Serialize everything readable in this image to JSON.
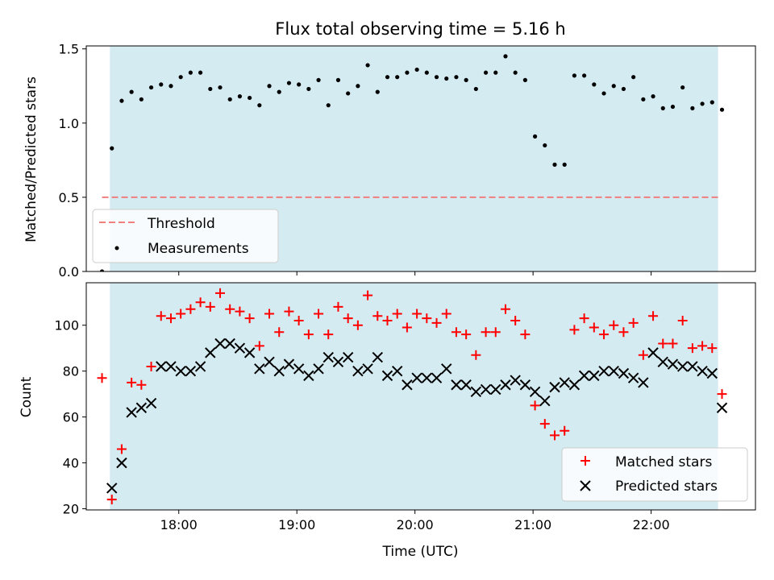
{
  "chart_data": {
    "title": "Flux total observing time = 5.16 h",
    "xlabel": "Time (UTC)",
    "x_ticks": [
      "18:00",
      "19:00",
      "20:00",
      "21:00",
      "22:00"
    ],
    "x_range": [
      "17:13",
      "22:53"
    ],
    "shaded_span": [
      "17:25",
      "22:34"
    ],
    "colors": {
      "shade": "#add8e6",
      "threshold": "#f07f7f",
      "matched": "#ff0000",
      "predicted": "#000000",
      "measurements": "#000000"
    },
    "panels": [
      {
        "type": "scatter",
        "ylabel": "Matched/Predicted stars",
        "ylim": [
          0,
          1.52
        ],
        "y_ticks": [
          "0.0",
          "0.5",
          "1.0",
          "1.5"
        ],
        "threshold": {
          "name": "Threshold",
          "value": 0.5,
          "from": "17:21",
          "to": "22:34"
        },
        "series": [
          {
            "name": "Measurements",
            "marker": "dot",
            "points": [
              [
                "17:21",
                0.0
              ],
              [
                "17:26",
                0.83
              ],
              [
                "17:31",
                1.15
              ],
              [
                "17:36",
                1.21
              ],
              [
                "17:41",
                1.16
              ],
              [
                "17:46",
                1.24
              ],
              [
                "17:51",
                1.26
              ],
              [
                "17:56",
                1.25
              ],
              [
                "18:01",
                1.31
              ],
              [
                "18:06",
                1.34
              ],
              [
                "18:11",
                1.34
              ],
              [
                "18:16",
                1.23
              ],
              [
                "18:21",
                1.24
              ],
              [
                "18:26",
                1.16
              ],
              [
                "18:31",
                1.18
              ],
              [
                "18:36",
                1.17
              ],
              [
                "18:41",
                1.12
              ],
              [
                "18:46",
                1.25
              ],
              [
                "18:51",
                1.21
              ],
              [
                "18:56",
                1.27
              ],
              [
                "19:01",
                1.26
              ],
              [
                "19:06",
                1.23
              ],
              [
                "19:11",
                1.29
              ],
              [
                "19:16",
                1.12
              ],
              [
                "19:21",
                1.29
              ],
              [
                "19:26",
                1.2
              ],
              [
                "19:31",
                1.25
              ],
              [
                "19:36",
                1.39
              ],
              [
                "19:41",
                1.21
              ],
              [
                "19:46",
                1.31
              ],
              [
                "19:51",
                1.31
              ],
              [
                "19:56",
                1.34
              ],
              [
                "20:01",
                1.36
              ],
              [
                "20:06",
                1.34
              ],
              [
                "20:11",
                1.31
              ],
              [
                "20:16",
                1.3
              ],
              [
                "20:21",
                1.31
              ],
              [
                "20:26",
                1.29
              ],
              [
                "20:31",
                1.23
              ],
              [
                "20:36",
                1.34
              ],
              [
                "20:41",
                1.34
              ],
              [
                "20:46",
                1.45
              ],
              [
                "20:51",
                1.34
              ],
              [
                "20:56",
                1.29
              ],
              [
                "21:01",
                0.91
              ],
              [
                "21:06",
                0.85
              ],
              [
                "21:11",
                0.72
              ],
              [
                "21:16",
                0.72
              ],
              [
                "21:21",
                1.32
              ],
              [
                "21:26",
                1.32
              ],
              [
                "21:31",
                1.26
              ],
              [
                "21:36",
                1.2
              ],
              [
                "21:41",
                1.25
              ],
              [
                "21:46",
                1.23
              ],
              [
                "21:51",
                1.31
              ],
              [
                "21:56",
                1.16
              ],
              [
                "22:01",
                1.18
              ],
              [
                "22:06",
                1.1
              ],
              [
                "22:11",
                1.11
              ],
              [
                "22:16",
                1.24
              ],
              [
                "22:21",
                1.1
              ],
              [
                "22:26",
                1.13
              ],
              [
                "22:31",
                1.14
              ],
              [
                "22:36",
                1.09
              ]
            ]
          }
        ],
        "legend": {
          "location": "lower-left",
          "entries": [
            "Threshold",
            "Measurements"
          ]
        }
      },
      {
        "type": "scatter",
        "ylabel": "Count",
        "ylim": [
          19.5,
          118.5
        ],
        "y_ticks": [
          "20",
          "40",
          "60",
          "80",
          "100"
        ],
        "series": [
          {
            "name": "Matched stars",
            "marker": "plus",
            "points": [
              [
                "17:21",
                77
              ],
              [
                "17:26",
                24
              ],
              [
                "17:31",
                46
              ],
              [
                "17:36",
                75
              ],
              [
                "17:41",
                74
              ],
              [
                "17:46",
                82
              ],
              [
                "17:51",
                104
              ],
              [
                "17:56",
                103
              ],
              [
                "18:01",
                105
              ],
              [
                "18:06",
                107
              ],
              [
                "18:11",
                110
              ],
              [
                "18:16",
                108
              ],
              [
                "18:21",
                114
              ],
              [
                "18:26",
                107
              ],
              [
                "18:31",
                106
              ],
              [
                "18:36",
                103
              ],
              [
                "18:41",
                91
              ],
              [
                "18:46",
                105
              ],
              [
                "18:51",
                97
              ],
              [
                "18:56",
                106
              ],
              [
                "19:01",
                102
              ],
              [
                "19:06",
                96
              ],
              [
                "19:11",
                105
              ],
              [
                "19:16",
                96
              ],
              [
                "19:21",
                108
              ],
              [
                "19:26",
                103
              ],
              [
                "19:31",
                100
              ],
              [
                "19:36",
                113
              ],
              [
                "19:41",
                104
              ],
              [
                "19:46",
                102
              ],
              [
                "19:51",
                105
              ],
              [
                "19:56",
                99
              ],
              [
                "20:01",
                105
              ],
              [
                "20:06",
                103
              ],
              [
                "20:11",
                101
              ],
              [
                "20:16",
                105
              ],
              [
                "20:21",
                97
              ],
              [
                "20:26",
                96
              ],
              [
                "20:31",
                87
              ],
              [
                "20:36",
                97
              ],
              [
                "20:41",
                97
              ],
              [
                "20:46",
                107
              ],
              [
                "20:51",
                102
              ],
              [
                "20:56",
                96
              ],
              [
                "21:01",
                65
              ],
              [
                "21:06",
                57
              ],
              [
                "21:11",
                52
              ],
              [
                "21:16",
                54
              ],
              [
                "21:21",
                98
              ],
              [
                "21:26",
                103
              ],
              [
                "21:31",
                99
              ],
              [
                "21:36",
                96
              ],
              [
                "21:41",
                100
              ],
              [
                "21:46",
                97
              ],
              [
                "21:51",
                101
              ],
              [
                "21:56",
                87
              ],
              [
                "22:01",
                104
              ],
              [
                "22:06",
                92
              ],
              [
                "22:11",
                92
              ],
              [
                "22:16",
                102
              ],
              [
                "22:21",
                90
              ],
              [
                "22:26",
                91
              ],
              [
                "22:31",
                90
              ],
              [
                "22:36",
                70
              ]
            ]
          },
          {
            "name": "Predicted stars",
            "marker": "x",
            "points": [
              [
                "17:26",
                29
              ],
              [
                "17:31",
                40
              ],
              [
                "17:36",
                62
              ],
              [
                "17:41",
                64
              ],
              [
                "17:46",
                66
              ],
              [
                "17:51",
                82
              ],
              [
                "17:56",
                82
              ],
              [
                "18:01",
                80
              ],
              [
                "18:06",
                80
              ],
              [
                "18:11",
                82
              ],
              [
                "18:16",
                88
              ],
              [
                "18:21",
                92
              ],
              [
                "18:26",
                92
              ],
              [
                "18:31",
                90
              ],
              [
                "18:36",
                88
              ],
              [
                "18:41",
                81
              ],
              [
                "18:46",
                84
              ],
              [
                "18:51",
                80
              ],
              [
                "18:56",
                83
              ],
              [
                "19:01",
                81
              ],
              [
                "19:06",
                78
              ],
              [
                "19:11",
                81
              ],
              [
                "19:16",
                86
              ],
              [
                "19:21",
                84
              ],
              [
                "19:26",
                86
              ],
              [
                "19:31",
                80
              ],
              [
                "19:36",
                81
              ],
              [
                "19:41",
                86
              ],
              [
                "19:46",
                78
              ],
              [
                "19:51",
                80
              ],
              [
                "19:56",
                74
              ],
              [
                "20:01",
                77
              ],
              [
                "20:06",
                77
              ],
              [
                "20:11",
                77
              ],
              [
                "20:16",
                81
              ],
              [
                "20:21",
                74
              ],
              [
                "20:26",
                74
              ],
              [
                "20:31",
                71
              ],
              [
                "20:36",
                72
              ],
              [
                "20:41",
                72
              ],
              [
                "20:46",
                74
              ],
              [
                "20:51",
                76
              ],
              [
                "20:56",
                74
              ],
              [
                "21:01",
                71
              ],
              [
                "21:06",
                67
              ],
              [
                "21:11",
                73
              ],
              [
                "21:16",
                75
              ],
              [
                "21:21",
                74
              ],
              [
                "21:26",
                78
              ],
              [
                "21:31",
                78
              ],
              [
                "21:36",
                80
              ],
              [
                "21:41",
                80
              ],
              [
                "21:46",
                79
              ],
              [
                "21:51",
                77
              ],
              [
                "21:56",
                75
              ],
              [
                "22:01",
                88
              ],
              [
                "22:06",
                84
              ],
              [
                "22:11",
                83
              ],
              [
                "22:16",
                82
              ],
              [
                "22:21",
                82
              ],
              [
                "22:26",
                80
              ],
              [
                "22:31",
                79
              ],
              [
                "22:36",
                64
              ]
            ]
          }
        ],
        "legend": {
          "location": "lower-right",
          "entries": [
            "Matched stars",
            "Predicted stars"
          ]
        }
      }
    ]
  }
}
